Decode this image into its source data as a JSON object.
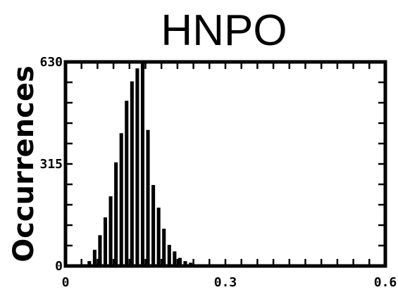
{
  "chart_data": {
    "type": "bar",
    "title": "HNPO",
    "xlabel": "",
    "ylabel": "Occurrences",
    "xlim": [
      0,
      0.6
    ],
    "ylim": [
      0,
      630
    ],
    "xticks": [
      {
        "value": 0,
        "label": "0"
      },
      {
        "value": 0.3,
        "label": "0.3"
      },
      {
        "value": 0.6,
        "label": "0.6"
      }
    ],
    "yticks": [
      {
        "value": 0,
        "label": "0"
      },
      {
        "value": 315,
        "label": "315"
      },
      {
        "value": 630,
        "label": "630"
      }
    ],
    "bin_width": 0.01,
    "bins": [
      {
        "x": 0.03,
        "y": 5
      },
      {
        "x": 0.04,
        "y": 15
      },
      {
        "x": 0.05,
        "y": 50
      },
      {
        "x": 0.06,
        "y": 95
      },
      {
        "x": 0.07,
        "y": 150
      },
      {
        "x": 0.08,
        "y": 215
      },
      {
        "x": 0.09,
        "y": 320
      },
      {
        "x": 0.1,
        "y": 410
      },
      {
        "x": 0.11,
        "y": 510
      },
      {
        "x": 0.12,
        "y": 570
      },
      {
        "x": 0.13,
        "y": 610
      },
      {
        "x": 0.14,
        "y": 630
      },
      {
        "x": 0.15,
        "y": 420
      },
      {
        "x": 0.16,
        "y": 250
      },
      {
        "x": 0.17,
        "y": 180
      },
      {
        "x": 0.18,
        "y": 115
      },
      {
        "x": 0.19,
        "y": 65
      },
      {
        "x": 0.2,
        "y": 45
      },
      {
        "x": 0.21,
        "y": 25
      },
      {
        "x": 0.22,
        "y": 15
      },
      {
        "x": 0.23,
        "y": 10
      },
      {
        "x": 0.24,
        "y": 5
      },
      {
        "x": 0.26,
        "y": 3
      },
      {
        "x": 0.28,
        "y": 2
      }
    ]
  }
}
